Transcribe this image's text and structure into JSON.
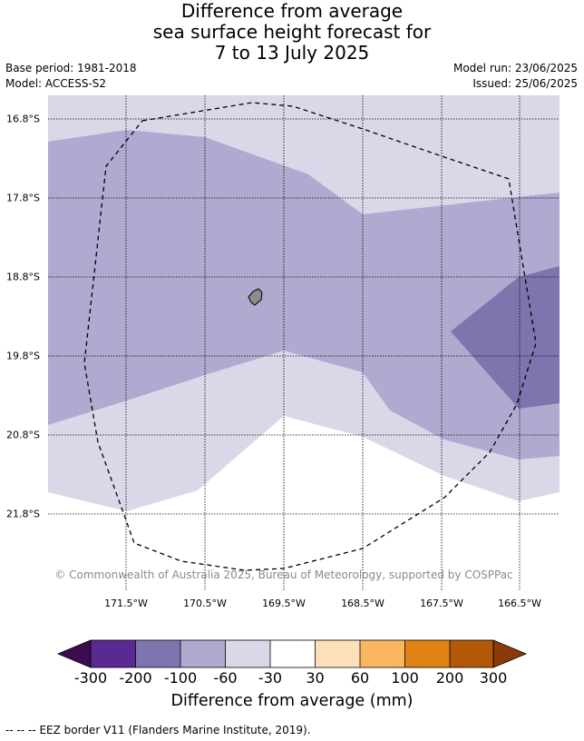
{
  "title": {
    "line1": "Difference from average",
    "line2": "sea surface height forecast for",
    "line3": "7 to 13 July 2025"
  },
  "meta": {
    "base_period": "Base period: 1981-2018",
    "model": "Model: ACCESS-S2",
    "model_run": "Model run: 23/06/2025",
    "issued": "Issued: 25/06/2025"
  },
  "map": {
    "latitudes": [
      "16.8°S",
      "17.8°S",
      "18.8°S",
      "19.8°S",
      "20.8°S",
      "21.8°S"
    ],
    "longitudes": [
      "171.5°W",
      "170.5°W",
      "169.5°W",
      "168.5°W",
      "167.5°W",
      "166.5°W"
    ],
    "copyright": "© Commonwealth of Australia 2025, Bureau of Meteorology, supported by COSPPac",
    "land_color": "#8c8c8c",
    "eez_border_style": "dashed"
  },
  "colorbar": {
    "title": "Difference from average (mm)",
    "tick_labels": [
      "-300",
      "-200",
      "-100",
      "-60",
      "-30",
      "30",
      "60",
      "100",
      "200",
      "300"
    ],
    "low_extend_color": "#3d0b52",
    "high_extend_color": "#8c3a09",
    "bin_colors": [
      "#5b2992",
      "#8074ae",
      "#b0a9d0",
      "#d8d8e9",
      "#ffffff",
      "#fde0b9",
      "#fbb660",
      "#e08214",
      "#b35806"
    ]
  },
  "legend_note": {
    "line_sample": "-- -- --",
    "text": "EEZ border V11 (Flanders Marine Institute, 2019)."
  }
}
